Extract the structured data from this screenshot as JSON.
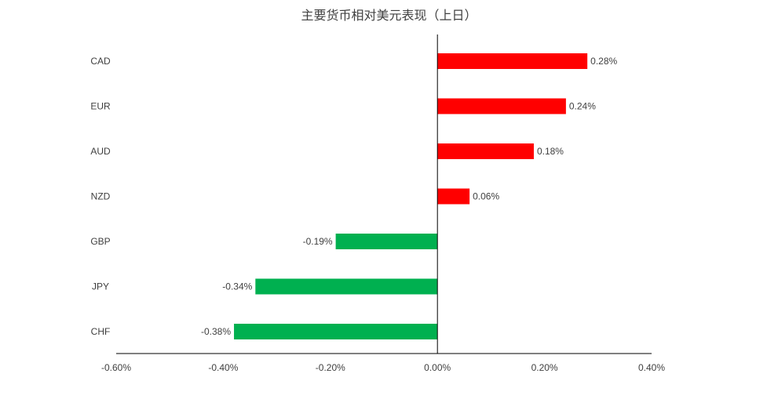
{
  "chart_data": {
    "type": "bar",
    "orientation": "horizontal",
    "title": "主要货币相对美元表现（上日）",
    "xlabel": "",
    "ylabel": "",
    "categories": [
      "CAD",
      "EUR",
      "AUD",
      "NZD",
      "GBP",
      "JPY",
      "CHF"
    ],
    "values": [
      0.28,
      0.24,
      0.18,
      0.06,
      -0.19,
      -0.34,
      -0.38
    ],
    "value_labels": [
      "0.28%",
      "0.24%",
      "0.18%",
      "0.06%",
      "-0.19%",
      "-0.34%",
      "-0.38%"
    ],
    "xlim": [
      -0.6,
      0.4
    ],
    "xticks": [
      -0.6,
      -0.4,
      -0.2,
      0.0,
      0.2,
      0.4
    ],
    "xtick_labels": [
      "-0.60%",
      "-0.40%",
      "-0.20%",
      "0.00%",
      "0.20%",
      "0.40%"
    ],
    "grid": false,
    "legend": "none",
    "colors": {
      "positive": "#ff0000",
      "negative": "#00b050",
      "axis": "#000000",
      "text": "#404040"
    }
  }
}
